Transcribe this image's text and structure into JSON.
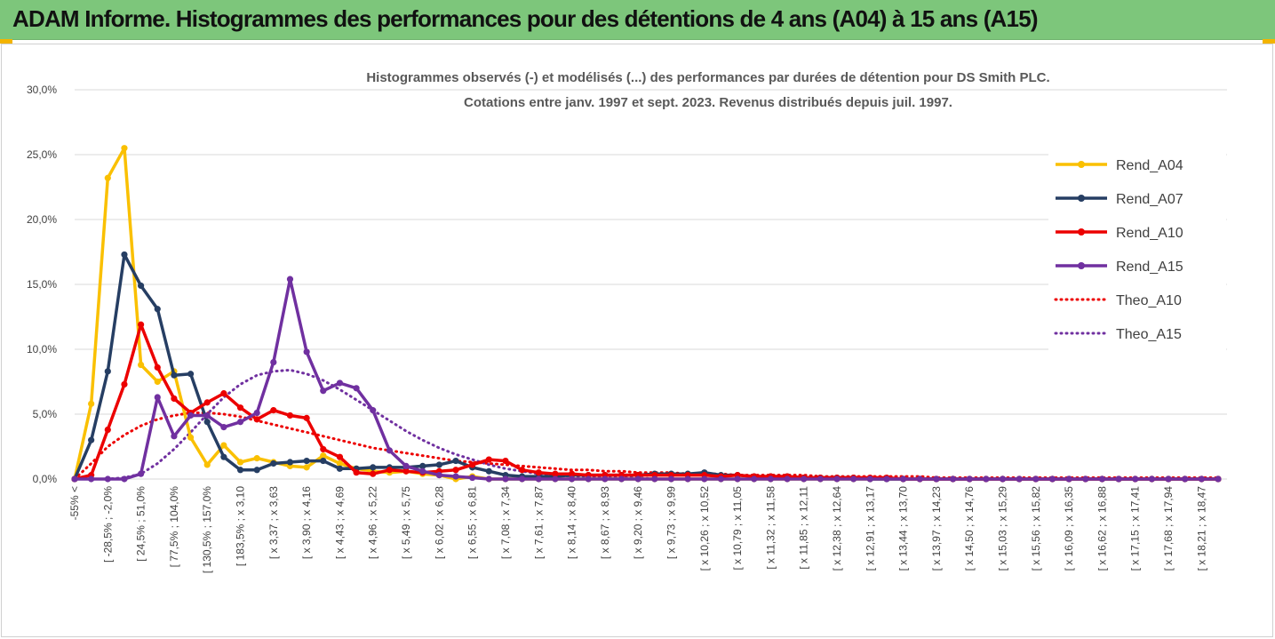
{
  "header": {
    "title": "ADAM Informe. Histogrammes des performances pour des détentions de 4 ans (A04) à 15 ans (A15)"
  },
  "colors": {
    "header_bg": "#7dc67b",
    "corner_mark": "#f3b400",
    "A04": "#fac000",
    "A07": "#263e63",
    "A10": "#ec0000",
    "A15": "#7030a0"
  },
  "chart_data": {
    "type": "line",
    "title_lines": [
      "Histogrammes observés (-) et modélisés (...)  des performances par durées de détention pour DS Smith PLC.",
      "Cotations entre janv. 1997 et sept. 2023. Revenus distribués depuis juil. 1997."
    ],
    "y_axis": {
      "ticks": [
        "0,0%",
        "5,0%",
        "10,0%",
        "15,0%",
        "20,0%",
        "25,0%",
        "30,0%"
      ],
      "ylim": [
        0,
        30
      ],
      "unit": "%"
    },
    "grid": "horizontal",
    "legend_position": "right",
    "x_tick_labels": [
      "-55% <",
      "[ -28,5% ; -2,0%",
      "[ 24,5% ; 51,0%",
      "[ 77,5% ; 104,0%",
      "[ 130,5% ; 157,0%",
      "[ 183,5% ; x 3,10",
      "[ x 3,37 ; x 3,63",
      "[ x 3,90 ; x 4,16",
      "[ x 4,43 ; x 4,69",
      "[ x 4,96 ; x 5,22",
      "[ x 5,49 ; x 5,75",
      "[ x 6,02 ; x 6,28",
      "[ x 6,55 ; x 6,81",
      "[ x 7,08 ; x 7,34",
      "[ x 7,61 ; x 7,87",
      "[ x 8,14 ; x 8,40",
      "[ x 8,67 ; x 8,93",
      "[ x 9,20 ; x 9,46",
      "[ x 9,73 ; x 9,99",
      "[ x 10,26 ; x 10,52",
      "[ x 10,79 ; x 11,05",
      "[ x 11,32 ; x 11,58",
      "[ x 11,85 ; x 12,11",
      "[ x 12,38 ; x 12,64",
      "[ x 12,91 ; x 13,17",
      "[ x 13,44 ; x 13,70",
      "[ x 13,97 ; x 14,23",
      "[ x 14,50 ; x 14,76",
      "[ x 15,03 ; x 15,29",
      "[ x 15,56 ; x 15,82",
      "[ x 16,09 ; x 16,35",
      "[ x 16,62 ; x 16,88",
      "[ x 17,15 ; x 17,41",
      "[ x 17,68 ; x 17,94",
      "[ x 18,21 ; x 18,47"
    ],
    "series": [
      {
        "name": "Rend_A04",
        "style": "solid",
        "color": "#fac000",
        "values": [
          0.0,
          5.8,
          23.2,
          25.5,
          8.8,
          7.5,
          8.3,
          3.2,
          1.1,
          2.6,
          1.3,
          1.6,
          1.3,
          1.0,
          0.9,
          1.8,
          1.2,
          0.8,
          0.6,
          0.5,
          0.6,
          0.4,
          0.3,
          0.0,
          0.2,
          0.0,
          0.0,
          0.0,
          0.0,
          0.0,
          0.0,
          0.0,
          0.0,
          0.0,
          0.0,
          0.0,
          0.0,
          0.0,
          0.0,
          0.0,
          0.0,
          0.0,
          0.0,
          0.0,
          0.0,
          0.0,
          0.0,
          0.0,
          0.0,
          0.0,
          0.0,
          0.0,
          0.0,
          0.0,
          0.0,
          0.0,
          0.0,
          0.0,
          0.0,
          0.0,
          0.0,
          0.0,
          0.0,
          0.0,
          0.0,
          0.0,
          0.0,
          0.0,
          0.0,
          0.0
        ]
      },
      {
        "name": "Rend_A07",
        "style": "solid",
        "color": "#263e63",
        "values": [
          0.0,
          3.0,
          8.3,
          17.3,
          14.9,
          13.1,
          8.0,
          8.1,
          4.4,
          1.7,
          0.7,
          0.7,
          1.2,
          1.3,
          1.4,
          1.4,
          0.8,
          0.8,
          0.9,
          0.9,
          0.9,
          1.0,
          1.1,
          1.4,
          0.9,
          0.6,
          0.3,
          0.2,
          0.2,
          0.2,
          0.3,
          0.3,
          0.3,
          0.3,
          0.3,
          0.4,
          0.4,
          0.4,
          0.5,
          0.3,
          0.3,
          0.2,
          0.2,
          0.2,
          0.1,
          0.1,
          0.1,
          0.1,
          0.0,
          0.0,
          0.0,
          0.0,
          0.0,
          0.0,
          0.0,
          0.0,
          0.0,
          0.0,
          0.0,
          0.0,
          0.0,
          0.0,
          0.0,
          0.0,
          0.0,
          0.0,
          0.0,
          0.0,
          0.0,
          0.0
        ]
      },
      {
        "name": "Rend_A10",
        "style": "solid",
        "color": "#ec0000",
        "values": [
          0.0,
          0.3,
          3.8,
          7.3,
          11.9,
          8.6,
          6.2,
          5.1,
          5.9,
          6.6,
          5.5,
          4.6,
          5.3,
          4.9,
          4.7,
          2.3,
          1.7,
          0.5,
          0.4,
          0.7,
          0.6,
          0.5,
          0.6,
          0.7,
          1.1,
          1.5,
          1.4,
          0.7,
          0.5,
          0.4,
          0.4,
          0.3,
          0.3,
          0.3,
          0.3,
          0.3,
          0.3,
          0.3,
          0.3,
          0.2,
          0.3,
          0.2,
          0.2,
          0.2,
          0.1,
          0.1,
          0.1,
          0.1,
          0.1,
          0.1,
          0.0,
          0.0,
          0.0,
          0.0,
          0.0,
          0.0,
          0.0,
          0.0,
          0.0,
          0.0,
          0.0,
          0.0,
          0.0,
          0.0,
          0.0,
          0.0,
          0.0,
          0.0,
          0.0,
          0.0
        ]
      },
      {
        "name": "Rend_A15",
        "style": "solid",
        "color": "#7030a0",
        "values": [
          0.0,
          0.0,
          0.0,
          0.0,
          0.4,
          6.3,
          3.3,
          4.9,
          4.9,
          4.0,
          4.4,
          5.1,
          9.0,
          15.4,
          9.8,
          6.8,
          7.4,
          7.0,
          5.3,
          2.2,
          1.0,
          0.6,
          0.3,
          0.2,
          0.1,
          0.0,
          0.0,
          0.0,
          0.0,
          0.0,
          0.0,
          0.0,
          0.0,
          0.0,
          0.0,
          0.0,
          0.0,
          0.0,
          0.0,
          0.0,
          0.0,
          0.0,
          0.0,
          0.0,
          0.0,
          0.0,
          0.0,
          0.0,
          0.0,
          0.0,
          0.0,
          0.0,
          0.0,
          0.0,
          0.0,
          0.0,
          0.0,
          0.0,
          0.0,
          0.0,
          0.0,
          0.0,
          0.0,
          0.0,
          0.0,
          0.0,
          0.0,
          0.0,
          0.0,
          0.0
        ]
      },
      {
        "name": "Theo_A10",
        "style": "dotted",
        "color": "#ec0000",
        "values": [
          0.0,
          1.2,
          2.5,
          3.4,
          4.1,
          4.6,
          4.9,
          5.1,
          5.1,
          5.0,
          4.8,
          4.5,
          4.2,
          3.9,
          3.6,
          3.3,
          3.0,
          2.7,
          2.4,
          2.2,
          2.0,
          1.8,
          1.6,
          1.4,
          1.3,
          1.2,
          1.1,
          1.0,
          0.9,
          0.8,
          0.7,
          0.7,
          0.6,
          0.6,
          0.5,
          0.5,
          0.5,
          0.4,
          0.4,
          0.4,
          0.3,
          0.3,
          0.3,
          0.3,
          0.3,
          0.2,
          0.2,
          0.2,
          0.2,
          0.2,
          0.2,
          0.2,
          0.1,
          0.1,
          0.1,
          0.1,
          0.1,
          0.1,
          0.1,
          0.1,
          0.1,
          0.1,
          0.1,
          0.1,
          0.1,
          0.1,
          0.1,
          0.1,
          0.1,
          0.1
        ]
      },
      {
        "name": "Theo_A15",
        "style": "dotted",
        "color": "#7030a0",
        "values": [
          0.0,
          0.0,
          0.0,
          0.1,
          0.4,
          1.2,
          2.3,
          3.6,
          5.0,
          6.3,
          7.3,
          8.0,
          8.3,
          8.4,
          8.1,
          7.6,
          6.9,
          6.1,
          5.3,
          4.5,
          3.7,
          3.0,
          2.4,
          1.9,
          1.5,
          1.1,
          0.8,
          0.6,
          0.4,
          0.3,
          0.2,
          0.2,
          0.1,
          0.1,
          0.1,
          0.0,
          0.0,
          0.0,
          0.0,
          0.0,
          0.0,
          0.0,
          0.0,
          0.0,
          0.0,
          0.0,
          0.0,
          0.0,
          0.0,
          0.0,
          0.0,
          0.0,
          0.0,
          0.0,
          0.0,
          0.0,
          0.0,
          0.0,
          0.0,
          0.0,
          0.0,
          0.0,
          0.0,
          0.0,
          0.0,
          0.0,
          0.0,
          0.0,
          0.0,
          0.0
        ]
      }
    ]
  }
}
